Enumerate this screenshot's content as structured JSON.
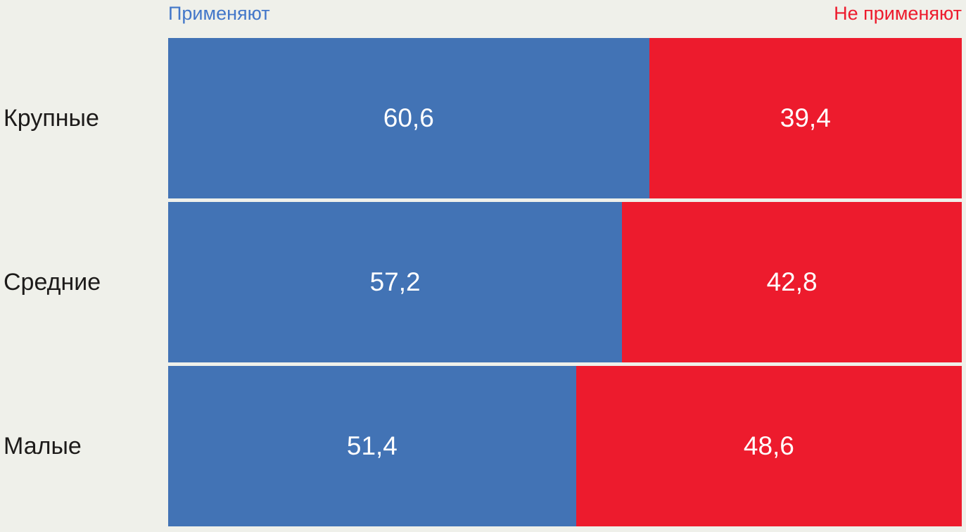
{
  "background_color": "#EFF0EA",
  "colors": {
    "apply_bar": "#4273B5",
    "not_apply_bar": "#ED1B2D",
    "legend_apply_text": "#4377C9",
    "legend_not_apply_text": "#ED1B2D",
    "category_text": "#1D1B1A",
    "value_text": "#FFFFFF"
  },
  "legend": {
    "apply_label": "Применяют",
    "not_apply_label": "Не применяют"
  },
  "chart_data": {
    "type": "bar",
    "orientation": "horizontal",
    "stacked": true,
    "title": "",
    "xlabel": "",
    "ylabel": "",
    "xlim": [
      0,
      100
    ],
    "grid": false,
    "legend_position": "top",
    "categories": [
      "Крупные",
      "Средние",
      "Малые"
    ],
    "series": [
      {
        "name": "Применяют",
        "color": "#4273B5",
        "values": [
          60.6,
          57.2,
          51.4
        ]
      },
      {
        "name": "Не применяют",
        "color": "#ED1B2D",
        "values": [
          39.4,
          42.8,
          48.6
        ]
      }
    ],
    "value_labels": [
      [
        "60,6",
        "39,4"
      ],
      [
        "57,2",
        "42,8"
      ],
      [
        "51,4",
        "48,6"
      ]
    ]
  }
}
